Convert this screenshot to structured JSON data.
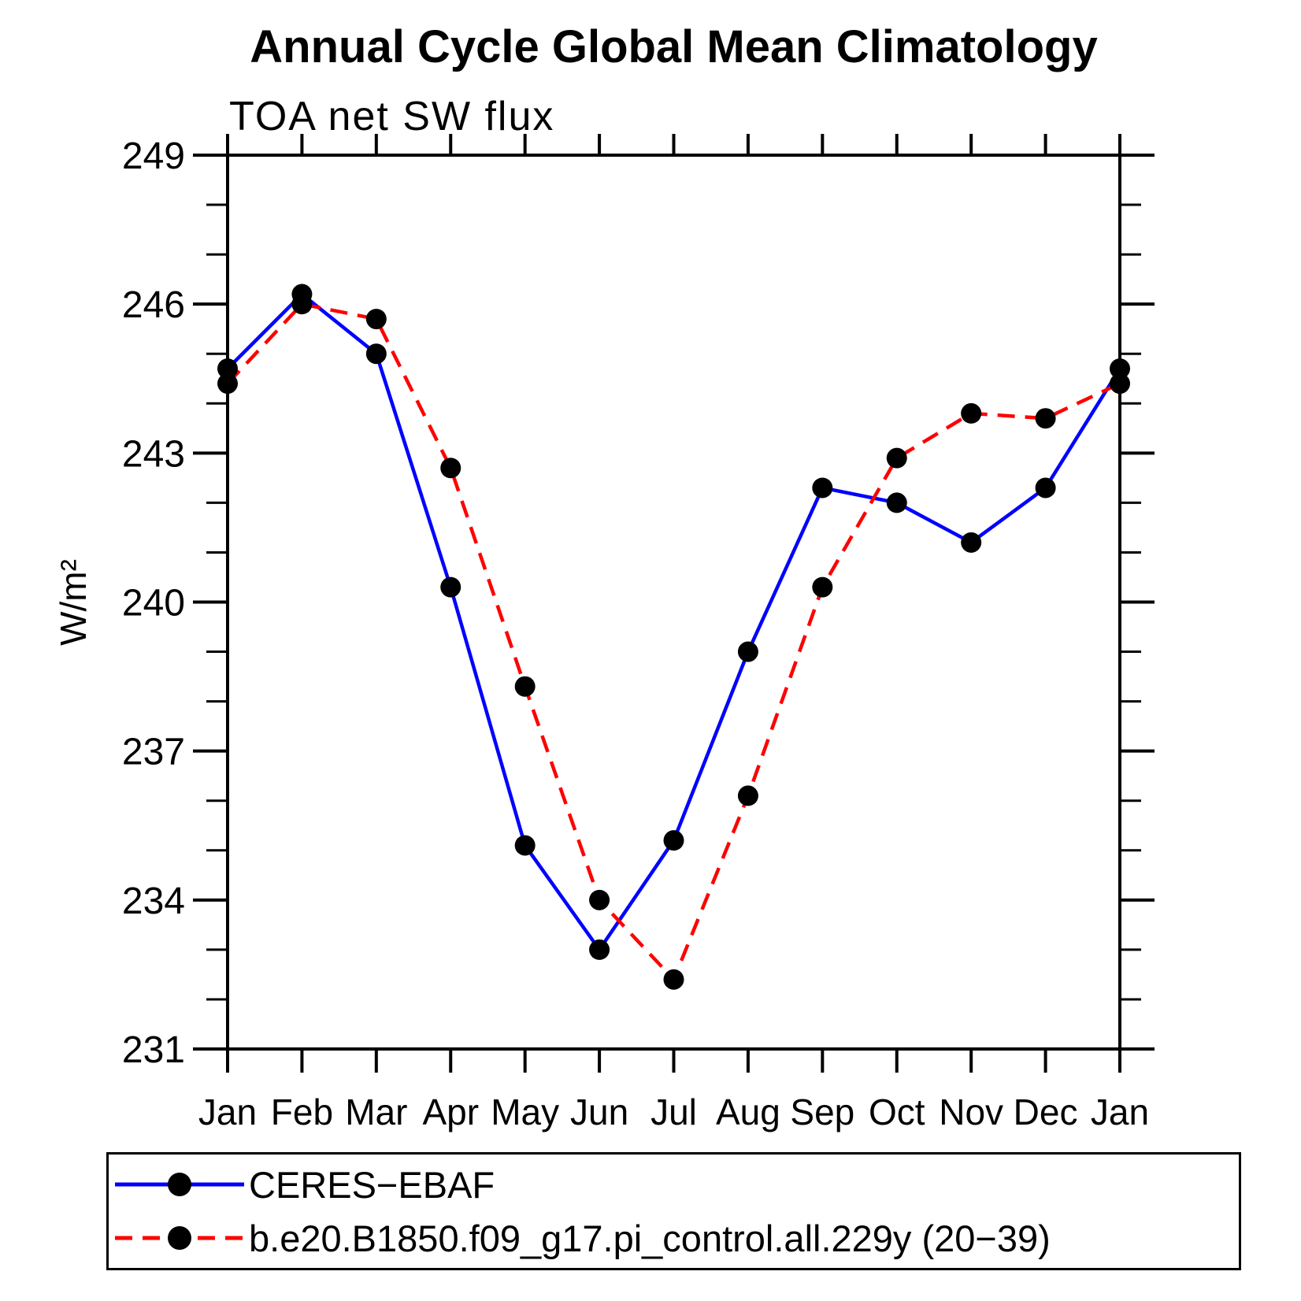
{
  "chart_data": {
    "type": "line",
    "title": "Annual Cycle Global Mean Climatology",
    "subtitle": "TOA net SW flux",
    "ylabel": "W/m²",
    "xlabel": "",
    "categories": [
      "Jan",
      "Feb",
      "Mar",
      "Apr",
      "May",
      "Jun",
      "Jul",
      "Aug",
      "Sep",
      "Oct",
      "Nov",
      "Dec",
      "Jan"
    ],
    "ylim": [
      231,
      249
    ],
    "yticks": [
      231,
      234,
      237,
      240,
      243,
      246,
      249
    ],
    "ytick_minor_step": 1,
    "grid": false,
    "legend_position": "bottom-left-box",
    "series": [
      {
        "name": "CERES−EBAF",
        "color": "#0000ff",
        "line_style": "solid",
        "marker": "filled-circle",
        "marker_color": "#000000",
        "values": [
          244.7,
          246.2,
          245.0,
          240.3,
          235.1,
          233.0,
          235.2,
          239.0,
          242.3,
          242.0,
          241.2,
          242.3,
          244.7
        ]
      },
      {
        "name": "b.e20.B1850.f09_g17.pi_control.all.229y (20−39)",
        "color": "#ff0000",
        "line_style": "dashed",
        "marker": "filled-circle",
        "marker_color": "#000000",
        "values": [
          244.4,
          246.0,
          245.7,
          242.7,
          238.3,
          234.0,
          232.4,
          236.1,
          240.3,
          242.9,
          243.8,
          243.7,
          244.4
        ]
      }
    ]
  }
}
